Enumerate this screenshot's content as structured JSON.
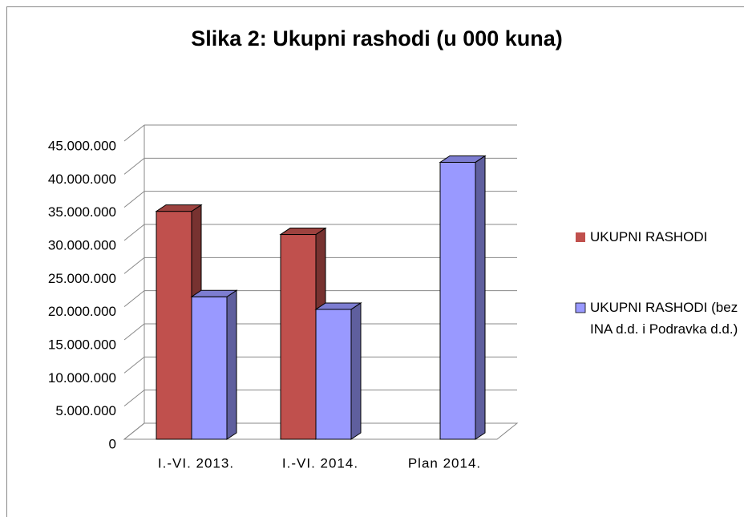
{
  "chart_data": {
    "type": "bar3d",
    "title": "Slika 2: Ukupni rashodi (u 000 kuna)",
    "categories": [
      "I.-VI. 2013.",
      "I.-VI. 2014.",
      "Plan 2014."
    ],
    "series": [
      {
        "name": "UKUPNI RASHODI",
        "color": "#c0504d",
        "values": [
          34400000,
          30900000,
          null
        ]
      },
      {
        "name": "UKUPNI RASHODI (bez INA d.d. i Podravka d.d.)",
        "color": "#9999ff",
        "values": [
          21500000,
          19600000,
          41800000
        ]
      }
    ],
    "ylim": [
      0,
      45000000
    ],
    "yticks": [
      0,
      {
        "value": 5000000,
        "label": "5.000.000"
      },
      {
        "value": 10000000,
        "label": "10.000.000"
      },
      {
        "value": 15000000,
        "label": "15.000.000"
      },
      {
        "value": 20000000,
        "label": "20.000.000"
      },
      {
        "value": 25000000,
        "label": "25.000.000"
      },
      {
        "value": 30000000,
        "label": "30.000.000"
      },
      {
        "value": 35000000,
        "label": "35.000.000"
      },
      {
        "value": 40000000,
        "label": "40.000.000"
      },
      {
        "value": 45000000,
        "label": "45.000.000"
      }
    ],
    "grid": true,
    "legend": "right"
  }
}
